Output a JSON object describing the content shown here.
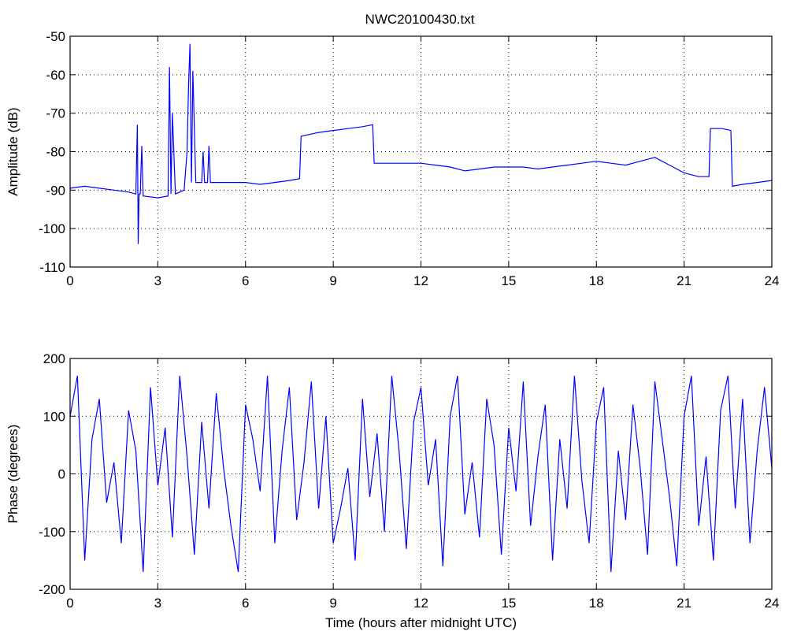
{
  "figure_title": "NWC20100430.txt",
  "chart_data": [
    {
      "type": "line",
      "title": "NWC20100430.txt",
      "xlabel": "",
      "ylabel": "Amplitude (dB)",
      "xlim": [
        0,
        24
      ],
      "ylim": [
        -110,
        -50
      ],
      "xticks": [
        0,
        3,
        6,
        9,
        12,
        15,
        18,
        21,
        24
      ],
      "yticks": [
        -110,
        -100,
        -90,
        -80,
        -70,
        -60,
        -50
      ],
      "grid": true,
      "line_color": "#0000ff",
      "series": [
        {
          "x": [
            0,
            0.5,
            1.0,
            1.5,
            2.0,
            2.25,
            2.3,
            2.33,
            2.36,
            2.4,
            2.45,
            2.5,
            3.0,
            3.35,
            3.4,
            3.45,
            3.5,
            3.6,
            3.9,
            4.0,
            4.05,
            4.1,
            4.15,
            4.2,
            4.3,
            4.5,
            4.55,
            4.6,
            4.7,
            4.75,
            4.8,
            5.0,
            6.0,
            6.5,
            7.0,
            7.5,
            7.85,
            7.9,
            8.5,
            9.0,
            9.5,
            10.0,
            10.35,
            10.4,
            11.0,
            11.5,
            12.0,
            12.5,
            13.0,
            13.5,
            14.0,
            14.5,
            15.0,
            15.5,
            16.0,
            16.5,
            17.0,
            17.5,
            18.0,
            18.5,
            19.0,
            19.5,
            20.0,
            20.5,
            21.0,
            21.5,
            21.85,
            21.9,
            22.3,
            22.6,
            22.65,
            23.0,
            23.5,
            24.0
          ],
          "y": [
            -89.5,
            -89.0,
            -89.5,
            -90.0,
            -90.5,
            -91.0,
            -73.0,
            -104.0,
            -91.0,
            -91.0,
            -78.5,
            -91.5,
            -92.0,
            -91.5,
            -58.0,
            -91.0,
            -70.0,
            -91.0,
            -90.0,
            -80.0,
            -63.0,
            -52.0,
            -88.0,
            -59.0,
            -88.0,
            -88.0,
            -80.0,
            -88.0,
            -88.0,
            -78.5,
            -88.0,
            -88.0,
            -88.0,
            -88.5,
            -88.0,
            -87.5,
            -87.0,
            -76.0,
            -75.0,
            -74.5,
            -74.0,
            -73.5,
            -73.0,
            -83.0,
            -83.0,
            -83.0,
            -83.0,
            -83.5,
            -84.0,
            -85.0,
            -84.5,
            -84.0,
            -84.0,
            -84.0,
            -84.5,
            -84.0,
            -83.5,
            -83.0,
            -82.5,
            -83.0,
            -83.5,
            -82.5,
            -81.5,
            -83.5,
            -85.5,
            -86.5,
            -86.5,
            -74.0,
            -74.0,
            -74.5,
            -89.0,
            -88.5,
            -88.0,
            -87.5
          ]
        }
      ]
    },
    {
      "type": "line",
      "title": "",
      "xlabel": "Time (hours after midnight UTC)",
      "ylabel": "Phase (degrees)",
      "xlim": [
        0,
        24
      ],
      "ylim": [
        -200,
        200
      ],
      "xticks": [
        0,
        3,
        6,
        9,
        12,
        15,
        18,
        21,
        24
      ],
      "yticks": [
        -200,
        -100,
        0,
        100,
        200
      ],
      "grid": true,
      "line_color": "#0000ff",
      "series": [
        {
          "x": [
            0,
            0.25,
            0.5,
            0.75,
            1.0,
            1.25,
            1.5,
            1.75,
            2.0,
            2.25,
            2.5,
            2.75,
            3.0,
            3.25,
            3.5,
            3.75,
            4.0,
            4.25,
            4.5,
            4.75,
            5.0,
            5.25,
            5.5,
            5.75,
            6.0,
            6.25,
            6.5,
            6.75,
            7.0,
            7.25,
            7.5,
            7.75,
            8.0,
            8.25,
            8.5,
            8.75,
            9.0,
            9.25,
            9.5,
            9.75,
            10.0,
            10.25,
            10.5,
            10.75,
            11.0,
            11.25,
            11.5,
            11.75,
            12.0,
            12.25,
            12.5,
            12.75,
            13.0,
            13.25,
            13.5,
            13.75,
            14.0,
            14.25,
            14.5,
            14.75,
            15.0,
            15.25,
            15.5,
            15.75,
            16.0,
            16.25,
            16.5,
            16.75,
            17.0,
            17.25,
            17.5,
            17.75,
            18.0,
            18.25,
            18.5,
            18.75,
            19.0,
            19.25,
            19.5,
            19.75,
            20.0,
            20.25,
            20.5,
            20.75,
            21.0,
            21.25,
            21.5,
            21.75,
            22.0,
            22.25,
            22.5,
            22.75,
            23.0,
            23.25,
            23.5,
            23.75,
            24.0
          ],
          "y": [
            100,
            170,
            -150,
            60,
            130,
            -50,
            20,
            -120,
            110,
            40,
            -170,
            150,
            -20,
            80,
            -110,
            170,
            30,
            -140,
            90,
            -60,
            140,
            10,
            -90,
            -170,
            120,
            60,
            -30,
            170,
            -120,
            40,
            150,
            -80,
            20,
            160,
            -60,
            100,
            -120,
            -60,
            10,
            -150,
            130,
            -40,
            70,
            -100,
            170,
            40,
            -130,
            90,
            150,
            -20,
            60,
            -160,
            100,
            170,
            -70,
            20,
            -110,
            130,
            50,
            -140,
            80,
            -30,
            160,
            -90,
            30,
            120,
            -150,
            60,
            -60,
            170,
            -10,
            -120,
            90,
            150,
            -170,
            40,
            -80,
            120,
            10,
            -140,
            160,
            60,
            -40,
            -160,
            100,
            170,
            -90,
            30,
            -150,
            110,
            170,
            -60,
            130,
            -120,
            40,
            150,
            10
          ]
        }
      ]
    }
  ]
}
